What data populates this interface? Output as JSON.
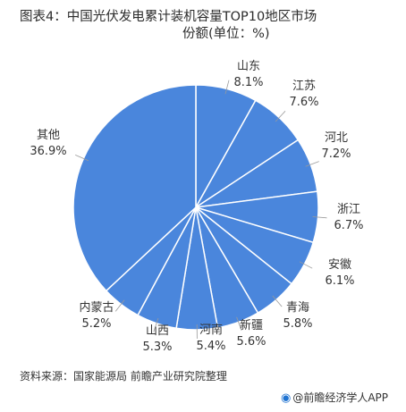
{
  "header": {
    "title_line1": "图表4：中国光伏发电累计装机容量TOP10地区市场",
    "title_line2": "份额(单位：%)"
  },
  "chart_data": {
    "type": "pie",
    "slices": [
      {
        "label": "山东",
        "value": 8.1,
        "value_label": "8.1%"
      },
      {
        "label": "江苏",
        "value": 7.6,
        "value_label": "7.6%"
      },
      {
        "label": "河北",
        "value": 7.2,
        "value_label": "7.2%"
      },
      {
        "label": "浙江",
        "value": 6.7,
        "value_label": "6.7%"
      },
      {
        "label": "安徽",
        "value": 6.1,
        "value_label": "6.1%"
      },
      {
        "label": "青海",
        "value": 5.8,
        "value_label": "5.8%"
      },
      {
        "label": "新疆",
        "value": 5.6,
        "value_label": "5.6%"
      },
      {
        "label": "河南",
        "value": 5.4,
        "value_label": "5.4%"
      },
      {
        "label": "山西",
        "value": 5.3,
        "value_label": "5.3%"
      },
      {
        "label": "内蒙古",
        "value": 5.2,
        "value_label": "5.2%"
      },
      {
        "label": "其他",
        "value": 36.9,
        "value_label": "36.9%"
      }
    ],
    "slice_color": "#4a86dc",
    "edge_color": "#ffffff",
    "start": "12 o'clock, clockwise"
  },
  "footer": {
    "source": "资料来源：国家能源局 前瞻产业研究院整理",
    "watermark": "@前瞻经济学人APP"
  }
}
